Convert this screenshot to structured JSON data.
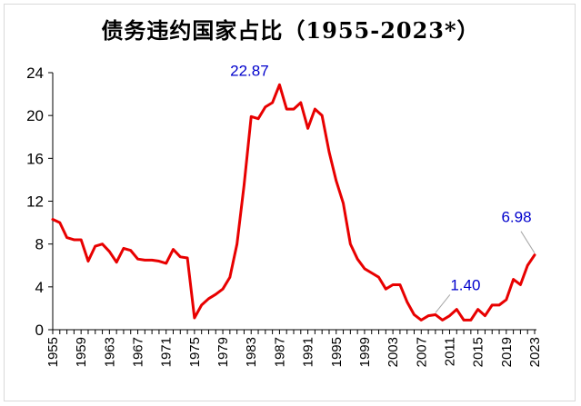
{
  "chart_data": {
    "type": "line",
    "title": "债务违约国家占比（1955-2023*）",
    "xlabel": "",
    "ylabel": "",
    "ylim": [
      0,
      24
    ],
    "yticks": [
      0,
      4,
      8,
      12,
      16,
      20,
      24
    ],
    "xticks": [
      1955,
      1959,
      1963,
      1967,
      1971,
      1975,
      1979,
      1983,
      1987,
      1991,
      1995,
      1999,
      2003,
      2007,
      2011,
      2015,
      2019,
      2023
    ],
    "grid": false,
    "colors": {
      "line": "#e80000",
      "annotation": "#0000cc",
      "leader": "#a6a6a6"
    },
    "x": [
      1955,
      1956,
      1957,
      1958,
      1959,
      1960,
      1961,
      1962,
      1963,
      1964,
      1965,
      1966,
      1967,
      1968,
      1969,
      1970,
      1971,
      1972,
      1973,
      1974,
      1975,
      1976,
      1977,
      1978,
      1979,
      1980,
      1981,
      1982,
      1983,
      1984,
      1985,
      1986,
      1987,
      1988,
      1989,
      1990,
      1991,
      1992,
      1993,
      1994,
      1995,
      1996,
      1997,
      1998,
      1999,
      2000,
      2001,
      2002,
      2003,
      2004,
      2005,
      2006,
      2007,
      2008,
      2009,
      2010,
      2011,
      2012,
      2013,
      2014,
      2015,
      2016,
      2017,
      2018,
      2019,
      2020,
      2021,
      2022,
      2023
    ],
    "series": [
      {
        "values": [
          10.3,
          10.0,
          8.6,
          8.4,
          8.4,
          6.4,
          7.8,
          8.0,
          7.3,
          6.3,
          7.6,
          7.4,
          6.6,
          6.5,
          6.5,
          6.4,
          6.2,
          7.5,
          6.8,
          6.7,
          1.1,
          2.3,
          2.9,
          3.3,
          3.8,
          4.9,
          8.0,
          13.5,
          19.9,
          19.7,
          20.8,
          21.2,
          22.87,
          20.6,
          20.6,
          21.2,
          18.8,
          20.6,
          20.0,
          16.6,
          13.9,
          11.8,
          8.0,
          6.6,
          5.7,
          5.3,
          4.9,
          3.8,
          4.2,
          4.2,
          2.6,
          1.4,
          0.9,
          1.3,
          1.4,
          0.9,
          1.3,
          1.9,
          0.9,
          0.9,
          1.9,
          1.3,
          2.3,
          2.3,
          2.8,
          4.7,
          4.2,
          6.0,
          6.98
        ]
      }
    ],
    "annotations": [
      {
        "x": 1987,
        "text": "22.87"
      },
      {
        "x": 2009,
        "text": "1.40"
      },
      {
        "x": 2023,
        "text": "6.98"
      }
    ]
  }
}
